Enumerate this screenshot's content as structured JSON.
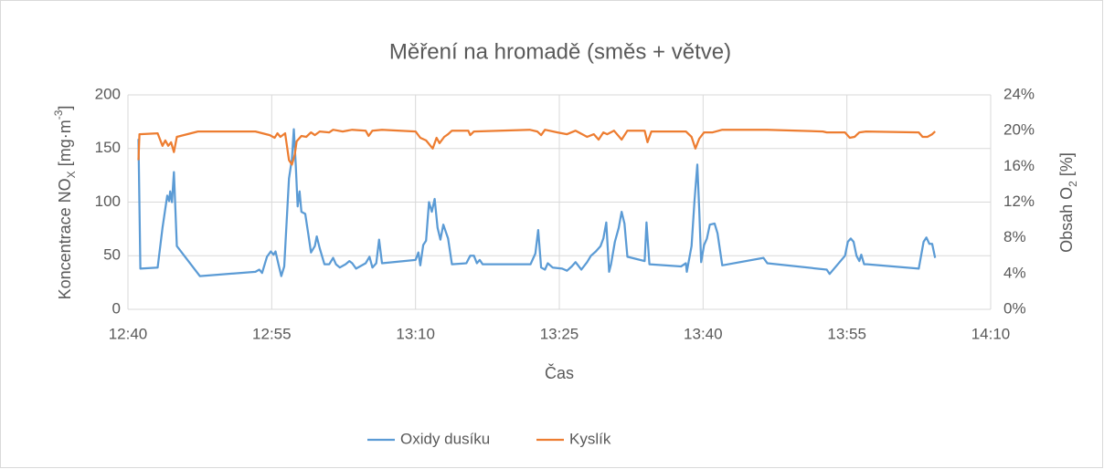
{
  "chart_data": {
    "type": "line",
    "title": "Měření na hromadě (směs + větve)",
    "x_label": "Čas",
    "y_label": [
      {
        "text": "Koncentrace NO"
      },
      {
        "text": "X",
        "style": "sub"
      },
      {
        "text": " [mg·m"
      },
      {
        "text": "-3",
        "style": "sup"
      },
      {
        "text": "]"
      }
    ],
    "y2_label": [
      {
        "text": "Obsah O"
      },
      {
        "text": "2",
        "style": "sub"
      },
      {
        "text": " [%]"
      }
    ],
    "xlim": [
      760,
      850
    ],
    "xticks": [
      {
        "value": 760,
        "label": "12:40"
      },
      {
        "value": 775,
        "label": "12:55"
      },
      {
        "value": 790,
        "label": "13:10"
      },
      {
        "value": 805,
        "label": "13:25"
      },
      {
        "value": 820,
        "label": "13:40"
      },
      {
        "value": 835,
        "label": "13:55"
      },
      {
        "value": 850,
        "label": "14:10"
      }
    ],
    "ylim": [
      0,
      200
    ],
    "yticks": [
      0,
      50,
      100,
      150,
      200
    ],
    "y2lim": [
      0,
      24
    ],
    "y2ticks": [
      {
        "value": 0,
        "label": "0%"
      },
      {
        "value": 4,
        "label": "4%"
      },
      {
        "value": 8,
        "label": "8%"
      },
      {
        "value": 12,
        "label": "12%"
      },
      {
        "value": 16,
        "label": "16%"
      },
      {
        "value": 20,
        "label": "20%"
      },
      {
        "value": 24,
        "label": "24%"
      }
    ],
    "grid": true,
    "legend": "bottom",
    "series": [
      {
        "name": "Oxidy dusíku",
        "color": "#5b9bd5",
        "x": [
          761.1,
          761.3,
          763.1,
          763.6,
          763.9,
          764.1,
          764.3,
          764.4,
          764.6,
          764.8,
          765.1,
          767.5,
          773.3,
          773.7,
          774.0,
          774.5,
          774.9,
          775.2,
          775.4,
          775.7,
          776.0,
          776.3,
          776.8,
          777.1,
          777.3,
          777.5,
          777.7,
          777.9,
          778.1,
          778.5,
          778.8,
          779.1,
          779.5,
          779.7,
          780.0,
          780.5,
          781.0,
          781.4,
          781.7,
          782.1,
          782.7,
          783.1,
          783.4,
          783.8,
          784.8,
          785.2,
          785.5,
          785.9,
          786.2,
          786.5,
          790.0,
          790.3,
          790.5,
          790.8,
          791.1,
          791.4,
          791.7,
          792.0,
          792.3,
          792.6,
          792.9,
          793.4,
          793.8,
          795.3,
          795.7,
          796.1,
          796.4,
          796.7,
          797.0,
          802.0,
          802.5,
          802.8,
          803.1,
          803.5,
          803.8,
          804.3,
          805.3,
          805.8,
          806.3,
          806.7,
          807.3,
          807.9,
          808.3,
          808.8,
          809.3,
          809.6,
          809.9,
          810.2,
          810.4,
          810.8,
          811.2,
          811.5,
          811.8,
          812.1,
          813.9,
          814.1,
          814.4,
          817.7,
          818.2,
          818.3,
          818.8,
          819.1,
          819.4,
          819.6,
          819.8,
          820.1,
          820.4,
          820.7,
          821.2,
          821.5,
          822.0,
          826.3,
          826.7,
          832.9,
          833.2,
          834.8,
          835.1,
          835.4,
          835.7,
          836.0,
          836.3,
          836.5,
          836.8,
          837.1,
          842.5,
          843.0,
          843.3,
          843.6,
          843.9,
          844.2
        ],
        "values": [
          159,
          38,
          39,
          76,
          94,
          106,
          101,
          110,
          100,
          128,
          59,
          31,
          35,
          37,
          34,
          49,
          54,
          51,
          54,
          42,
          31,
          40,
          122,
          140,
          168,
          135,
          96,
          110,
          91,
          89,
          71,
          53,
          59,
          68,
          57,
          42,
          42,
          48,
          42,
          39,
          42,
          45,
          43,
          38,
          43,
          49,
          39,
          43,
          65,
          43,
          46,
          53,
          41,
          60,
          64,
          100,
          91,
          103,
          76,
          65,
          79,
          66,
          42,
          43,
          50,
          50,
          43,
          46,
          42,
          42,
          52,
          74,
          39,
          37,
          43,
          39,
          38,
          36,
          40,
          44,
          37,
          44,
          50,
          54,
          59,
          66,
          81,
          35,
          42,
          63,
          76,
          91,
          80,
          49,
          45,
          81,
          42,
          40,
          43,
          35,
          59,
          101,
          135,
          93,
          44,
          60,
          66,
          79,
          80,
          71,
          41,
          48,
          43,
          37,
          33,
          50,
          63,
          66,
          63,
          50,
          45,
          51,
          42,
          42,
          38,
          63,
          67,
          61,
          61,
          48
        ]
      },
      {
        "name": "Kyslík",
        "color": "#ed7d31",
        "axis": "y2",
        "x": [
          761.1,
          761.2,
          763.1,
          763.6,
          763.9,
          764.2,
          764.5,
          764.8,
          765.1,
          767.3,
          773.3,
          774.8,
          775.3,
          775.6,
          775.9,
          776.4,
          776.8,
          777.1,
          777.4,
          777.6,
          778.1,
          778.6,
          779.1,
          779.5,
          780.0,
          781.0,
          781.4,
          782.4,
          783.4,
          784.8,
          785.1,
          785.5,
          786.5,
          790.0,
          790.5,
          791.1,
          791.8,
          792.2,
          792.5,
          793.0,
          793.4,
          793.8,
          795.5,
          795.7,
          796.1,
          801.9,
          802.7,
          803.1,
          803.5,
          804.8,
          805.8,
          806.7,
          807.9,
          808.6,
          809.1,
          809.6,
          810.0,
          810.7,
          811.5,
          812.1,
          813.9,
          814.2,
          814.6,
          818.2,
          818.8,
          819.2,
          819.6,
          820.1,
          821.0,
          822.0,
          826.7,
          832.5,
          832.9,
          834.8,
          835.3,
          835.8,
          836.3,
          837.0,
          842.5,
          842.9,
          843.4,
          843.9,
          844.2
        ],
        "values": [
          16.7,
          19.6,
          19.7,
          18.3,
          18.9,
          18.3,
          18.7,
          17.6,
          19.3,
          19.9,
          19.9,
          19.5,
          19.2,
          19.7,
          19.3,
          19.7,
          16.7,
          16.2,
          17.3,
          18.8,
          19.4,
          19.3,
          19.8,
          19.5,
          19.9,
          19.8,
          20.1,
          19.9,
          20.1,
          20.0,
          19.4,
          20.0,
          20.1,
          19.9,
          19.2,
          18.9,
          18.0,
          19.2,
          18.6,
          19.3,
          19.6,
          20.0,
          20.0,
          19.5,
          19.9,
          20.1,
          19.9,
          19.5,
          20.1,
          19.8,
          19.6,
          20.0,
          19.3,
          19.6,
          19.0,
          19.8,
          19.6,
          20.0,
          19.0,
          20.0,
          20.0,
          18.7,
          19.9,
          19.9,
          19.3,
          18.0,
          19.1,
          19.8,
          19.8,
          20.1,
          20.1,
          19.9,
          19.8,
          19.8,
          19.2,
          19.3,
          19.8,
          19.9,
          19.8,
          19.3,
          19.3,
          19.6,
          19.9
        ]
      }
    ]
  }
}
